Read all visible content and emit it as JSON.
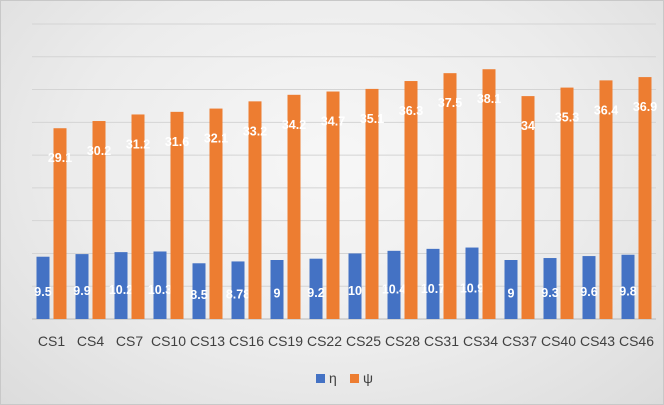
{
  "chart_data": {
    "type": "bar",
    "categories": [
      "CS1",
      "CS4",
      "CS7",
      "CS10",
      "CS13",
      "CS16",
      "CS19",
      "CS22",
      "CS25",
      "CS28",
      "CS31",
      "CS34",
      "CS37",
      "CS40",
      "CS43",
      "CS46"
    ],
    "series": [
      {
        "name": "η",
        "color": "#4472c4",
        "values": [
          9.5,
          9.9,
          10.2,
          10.3,
          8.5,
          8.78,
          9,
          9.2,
          10,
          10.4,
          10.7,
          10.9,
          9,
          9.3,
          9.6,
          9.8
        ],
        "labels": [
          "9.5",
          "9.9",
          "10.2",
          "10.3",
          "8.5",
          "8.78",
          "9",
          "9.2",
          "10",
          "10.4",
          "10.7",
          "10.9",
          "9",
          "9.3",
          "9.6",
          "9.8"
        ]
      },
      {
        "name": "ψ",
        "color": "#ed7d31",
        "values": [
          29.1,
          30.2,
          31.2,
          31.6,
          32.1,
          33.2,
          34.2,
          34.7,
          35.1,
          36.3,
          37.5,
          38.1,
          34,
          35.3,
          36.4,
          36.9
        ],
        "labels": [
          "29.1",
          "30.2",
          "31.2",
          "31.6",
          "32.1",
          "33.2",
          "34.2",
          "34.7",
          "35.1",
          "36.3",
          "37.5",
          "38.1",
          "34",
          "35.3",
          "36.4",
          "36.9"
        ]
      }
    ],
    "ylim": [
      0,
      45
    ],
    "grid": true,
    "legend": "bottom",
    "title": "",
    "xlabel": "",
    "ylabel": ""
  }
}
